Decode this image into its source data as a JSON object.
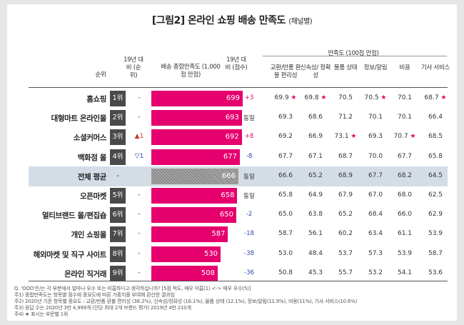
{
  "title": "[그림2] 온라인 쇼핑 배송 만족도",
  "subtitle": "(채널별)",
  "headers": {
    "rank": "순위",
    "yoy_rank": "19년 대비 (순위)",
    "overall": "배송 종합만족도 (1,000점 만점)",
    "yoy_score": "19년 대비 (점수)",
    "satisfaction_group": "만족도 (100점 만점)",
    "sub": [
      "교환/반품 환불 편리성",
      "신속성/ 정확성",
      "물품 상태",
      "정보/알림",
      "비용",
      "기사 서비스"
    ]
  },
  "chart_data": {
    "type": "bar",
    "title": "[그림2] 온라인 쇼핑 배송 만족도 (채널별)",
    "categories": [
      "홈쇼핑",
      "대형마트 온라인몰",
      "소셜커머스",
      "백화점 몰",
      "전체 평균",
      "오픈마켓",
      "멀티브랜드 몰/편집숍",
      "개인 쇼핑몰",
      "해외마켓 및 직구 사이트",
      "온라인 직거래"
    ],
    "ranks": [
      "1위",
      "2위",
      "3위",
      "4위",
      "-",
      "5위",
      "6위",
      "7위",
      "8위",
      "9위"
    ],
    "rank_change": [
      "-",
      "-",
      "▲1",
      "▽1",
      "",
      "-",
      "-",
      "-",
      "-",
      "-"
    ],
    "values": [
      699,
      693,
      692,
      677,
      666,
      658,
      650,
      587,
      530,
      508
    ],
    "yoy_diff": [
      "+3",
      "동일",
      "+8",
      "-8",
      "동일",
      "동일",
      "-2",
      "-18",
      "-38",
      "-36"
    ],
    "xlim": [
      0,
      740
    ],
    "sub_scores": [
      [
        "69.9",
        "69.8",
        "70.5",
        "70.5",
        "70.1",
        "68.7"
      ],
      [
        "69.3",
        "68.6",
        "71.2",
        "70.1",
        "70.1",
        "66.4"
      ],
      [
        "69.2",
        "66.9",
        "73.1",
        "69.3",
        "70.7",
        "68.5"
      ],
      [
        "67.7",
        "67.1",
        "68.7",
        "70.0",
        "67.7",
        "65.8"
      ],
      [
        "66.6",
        "65.2",
        "68.9",
        "67.7",
        "68.2",
        "64.5"
      ],
      [
        "65.8",
        "64.9",
        "67.9",
        "67.0",
        "68.0",
        "62.5"
      ],
      [
        "65.0",
        "63.8",
        "65.2",
        "68.4",
        "66.0",
        "62.9"
      ],
      [
        "58.7",
        "56.1",
        "60.2",
        "63.4",
        "61.1",
        "53.9"
      ],
      [
        "53.0",
        "48.4",
        "53.7",
        "57.3",
        "53.9",
        "58.7"
      ],
      [
        "50.8",
        "45.3",
        "55.7",
        "53.2",
        "54.1",
        "53.6"
      ]
    ],
    "stars": [
      [
        0,
        0
      ],
      [
        0,
        1
      ],
      [
        0,
        3
      ],
      [
        0,
        5
      ],
      [
        2,
        2
      ],
      [
        2,
        4
      ]
    ]
  },
  "notes": [
    "Q. 'OOO'은/는 각 부분에서 얼마나 우수 또는 미흡하다고 생각하십니까? [5점 척도, 매우 미흡(1) <-> 매우 우수(5)]",
    "주1) 종합만족도는 항목별 점수에 중요도에 따른 가중치를 부여해 환산한 결과임",
    "주2) 2020년 기준 항목별 중요도 : 교환/반품 환불 편리성 (38.2%), 신속성/정확성 (16.1%), 물품 상태 (12.1%), 정보/알림(11.9%), 비용(11%), 기사 서비스(10.6%)",
    "주3) 응답 수는 2020년 3만 4,999개 (인당 최대 2개 브랜드 평가) 2019년 4만 210개",
    "주4) ★ 표시는 부문별 1위"
  ],
  "colors": {
    "bar": "#e5006e",
    "avg_bar": "#8c8c8c",
    "avg_row": "#d4dde6",
    "rank_box": "#4a4a4a"
  }
}
